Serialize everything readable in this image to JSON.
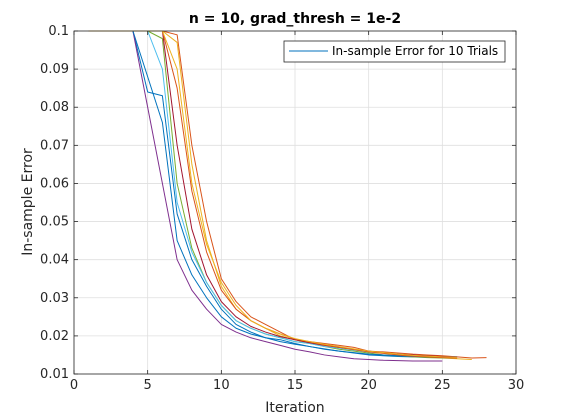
{
  "chart_data": {
    "type": "line",
    "title": "n = 10, grad_thresh = 1e-2",
    "xlabel": "Iteration",
    "ylabel": "In-sample Error",
    "xlim": [
      0,
      30
    ],
    "ylim": [
      0.01,
      0.1
    ],
    "xticks": [
      0,
      5,
      10,
      15,
      20,
      25,
      30
    ],
    "yticks": [
      0.01,
      0.02,
      0.03,
      0.04,
      0.05,
      0.06,
      0.07,
      0.08,
      0.09,
      0.1
    ],
    "xtick_labels": [
      "0",
      "5",
      "10",
      "15",
      "20",
      "25",
      "30"
    ],
    "ytick_labels": [
      "0.01",
      "0.02",
      "0.03",
      "0.04",
      "0.05",
      "0.06",
      "0.07",
      "0.08",
      "0.09",
      "0.1"
    ],
    "grid": true,
    "legend": {
      "placement": "top-right",
      "entries": [
        "In-sample Error for 10 Trials"
      ],
      "line_color": "#0072bd"
    },
    "series": [
      {
        "color": "#0072bd",
        "x": [
          1,
          2,
          3,
          4,
          5,
          6,
          7,
          8,
          9,
          10,
          11,
          12,
          13,
          14,
          15,
          16,
          17,
          18,
          19,
          20,
          21,
          22,
          23,
          24,
          25,
          26
        ],
        "y": [
          0.1,
          0.1,
          0.1,
          0.1,
          0.084,
          0.083,
          0.052,
          0.04,
          0.033,
          0.027,
          0.023,
          0.021,
          0.0195,
          0.019,
          0.018,
          0.0172,
          0.0165,
          0.016,
          0.0155,
          0.015,
          0.0148,
          0.0146,
          0.0145,
          0.0145,
          0.0145,
          0.0145
        ]
      },
      {
        "color": "#d95319",
        "x": [
          1,
          2,
          3,
          4,
          5,
          6,
          7,
          8,
          9,
          10,
          11,
          12,
          13,
          14,
          15,
          16,
          17,
          18,
          19,
          20,
          21,
          22,
          23,
          24,
          25,
          26,
          27,
          28
        ],
        "y": [
          0.1,
          0.1,
          0.1,
          0.1,
          0.1,
          0.1,
          0.099,
          0.07,
          0.05,
          0.035,
          0.029,
          0.025,
          0.023,
          0.021,
          0.019,
          0.0185,
          0.018,
          0.0175,
          0.017,
          0.016,
          0.0158,
          0.0155,
          0.0152,
          0.015,
          0.0148,
          0.0145,
          0.0142,
          0.0143
        ]
      },
      {
        "color": "#edb120",
        "x": [
          1,
          2,
          3,
          4,
          5,
          6,
          7,
          8,
          9,
          10,
          11,
          12,
          13,
          14,
          15,
          16,
          17,
          18,
          19,
          20,
          21,
          22,
          23,
          24,
          25,
          26,
          27
        ],
        "y": [
          0.1,
          0.1,
          0.1,
          0.1,
          0.1,
          0.1,
          0.097,
          0.065,
          0.045,
          0.033,
          0.027,
          0.024,
          0.022,
          0.02,
          0.019,
          0.018,
          0.0175,
          0.017,
          0.0165,
          0.016,
          0.0155,
          0.015,
          0.0148,
          0.0145,
          0.0142,
          0.014,
          0.0138
        ]
      },
      {
        "color": "#7e2f8e",
        "x": [
          1,
          2,
          3,
          4,
          5,
          6,
          7,
          8,
          9,
          10,
          11,
          12,
          13,
          14,
          15,
          16,
          17,
          18,
          19,
          20,
          21,
          22,
          23,
          24,
          25
        ],
        "y": [
          0.1,
          0.1,
          0.1,
          0.1,
          0.08,
          0.06,
          0.04,
          0.032,
          0.027,
          0.023,
          0.021,
          0.0195,
          0.0185,
          0.0175,
          0.0165,
          0.0158,
          0.015,
          0.0145,
          0.014,
          0.0138,
          0.0136,
          0.0135,
          0.0134,
          0.0134,
          0.0134
        ]
      },
      {
        "color": "#77ac30",
        "x": [
          1,
          2,
          3,
          4,
          5,
          6,
          7,
          8,
          9,
          10,
          11,
          12,
          13,
          14,
          15,
          16,
          17,
          18,
          19,
          20,
          21,
          22,
          23,
          24,
          25,
          26
        ],
        "y": [
          0.1,
          0.1,
          0.1,
          0.1,
          0.1,
          0.098,
          0.06,
          0.043,
          0.034,
          0.028,
          0.024,
          0.022,
          0.0205,
          0.0195,
          0.0185,
          0.018,
          0.0172,
          0.0165,
          0.016,
          0.0155,
          0.015,
          0.0148,
          0.0145,
          0.0143,
          0.0142,
          0.0142
        ]
      },
      {
        "color": "#4dbeee",
        "x": [
          1,
          2,
          3,
          4,
          5,
          6,
          7,
          8,
          9,
          10,
          11,
          12,
          13,
          14,
          15,
          16,
          17,
          18,
          19,
          20,
          21,
          22,
          23,
          24,
          25,
          26
        ],
        "y": [
          0.1,
          0.1,
          0.1,
          0.1,
          0.1,
          0.09,
          0.055,
          0.042,
          0.034,
          0.028,
          0.024,
          0.022,
          0.0205,
          0.0195,
          0.0185,
          0.018,
          0.0172,
          0.0168,
          0.0163,
          0.0158,
          0.0155,
          0.015,
          0.0148,
          0.0146,
          0.0145,
          0.0145
        ]
      },
      {
        "color": "#a2142f",
        "x": [
          1,
          2,
          3,
          4,
          5,
          6,
          7,
          8,
          9,
          10,
          11,
          12,
          13,
          14,
          15,
          16,
          17,
          18,
          19,
          20,
          21,
          22,
          23,
          24,
          25,
          26
        ],
        "y": [
          0.1,
          0.1,
          0.1,
          0.1,
          0.1,
          0.1,
          0.07,
          0.048,
          0.036,
          0.029,
          0.025,
          0.0225,
          0.021,
          0.0198,
          0.019,
          0.0182,
          0.0175,
          0.017,
          0.0165,
          0.016,
          0.0155,
          0.0152,
          0.015,
          0.0148,
          0.0146,
          0.0145
        ]
      },
      {
        "color": "#0072bd",
        "x": [
          1,
          2,
          3,
          4,
          5,
          6,
          7,
          8,
          9,
          10,
          11,
          12,
          13,
          14,
          15,
          16,
          17,
          18,
          19,
          20,
          21,
          22,
          23,
          24,
          25,
          26
        ],
        "y": [
          0.1,
          0.1,
          0.1,
          0.1,
          0.088,
          0.076,
          0.045,
          0.036,
          0.03,
          0.025,
          0.022,
          0.0205,
          0.0195,
          0.0185,
          0.0178,
          0.0172,
          0.0166,
          0.016,
          0.0156,
          0.0152,
          0.015,
          0.0148,
          0.0146,
          0.0145,
          0.0144,
          0.0144
        ]
      },
      {
        "color": "#d95319",
        "x": [
          1,
          2,
          3,
          4,
          5,
          6,
          7,
          8,
          9,
          10,
          11,
          12,
          13,
          14,
          15,
          16,
          17,
          18,
          19,
          20,
          21,
          22,
          23,
          24,
          25,
          26
        ],
        "y": [
          0.1,
          0.1,
          0.1,
          0.1,
          0.1,
          0.1,
          0.085,
          0.058,
          0.042,
          0.032,
          0.027,
          0.024,
          0.022,
          0.0205,
          0.0192,
          0.0184,
          0.0176,
          0.017,
          0.0164,
          0.0158,
          0.0154,
          0.015,
          0.0147,
          0.0145,
          0.0143,
          0.0142
        ]
      },
      {
        "color": "#edb120",
        "x": [
          1,
          2,
          3,
          4,
          5,
          6,
          7,
          8,
          9,
          10,
          11,
          12,
          13,
          14,
          15,
          16,
          17,
          18,
          19,
          20,
          21,
          22,
          23,
          24,
          25,
          26
        ],
        "y": [
          0.1,
          0.1,
          0.1,
          0.1,
          0.1,
          0.1,
          0.09,
          0.06,
          0.044,
          0.034,
          0.028,
          0.024,
          0.022,
          0.0205,
          0.0193,
          0.0185,
          0.0178,
          0.0172,
          0.0166,
          0.016,
          0.0156,
          0.0152,
          0.0149,
          0.0147,
          0.0145,
          0.0144
        ]
      }
    ]
  }
}
